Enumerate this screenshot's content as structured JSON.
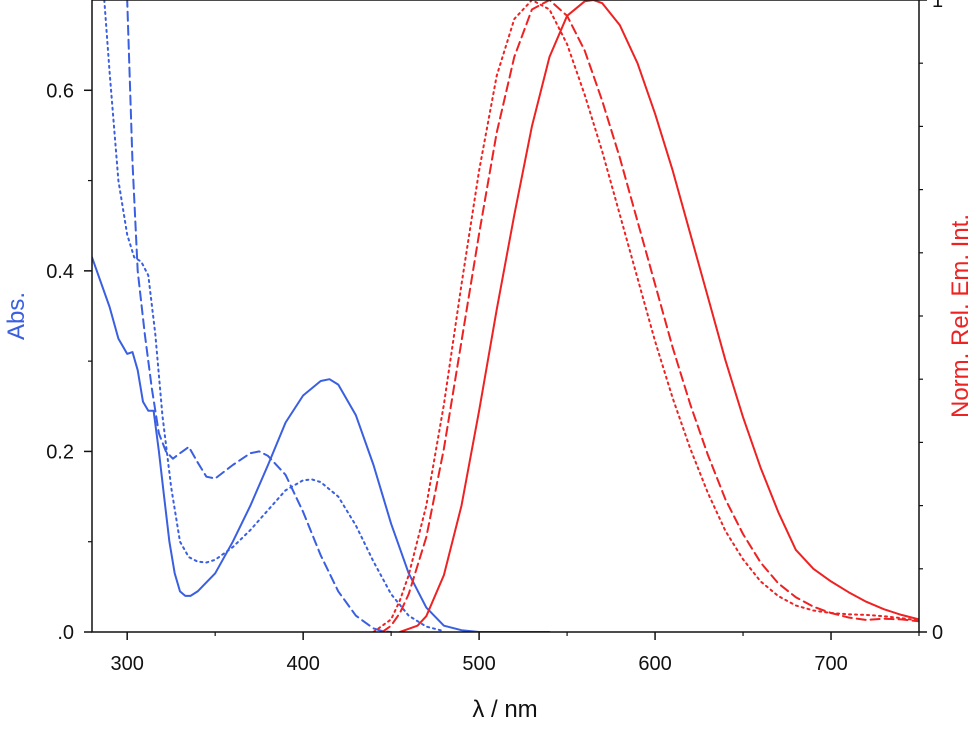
{
  "chart_data": {
    "type": "line",
    "xlabel": "λ / nm",
    "ylabel_left": "Abs.",
    "ylabel_right": "Norm. Rel. Em. Int.",
    "xlim": [
      280,
      750
    ],
    "ylim_left": [
      0,
      0.7
    ],
    "ylim_right": [
      0,
      1.0
    ],
    "x_ticks": [
      300,
      400,
      500,
      600,
      700
    ],
    "x_tick_labels": [
      "300",
      "400",
      "500",
      "600",
      "700"
    ],
    "y_left_ticks": [
      0,
      0.2,
      0.4,
      0.6
    ],
    "y_left_tick_labels": [
      ".0",
      "0.2",
      "0.4",
      "0.6"
    ],
    "y_right_ticks": [
      0,
      1
    ],
    "y_right_tick_labels": [
      "0",
      "1"
    ],
    "grid": false,
    "colors": {
      "absorption": "#3a5fe0",
      "emission": "#ee2222",
      "axis": "#111111"
    },
    "series": [
      {
        "kind": "absorption",
        "axis": "left",
        "dash": "solid",
        "x": [
          280,
          290,
          295,
          300,
          303,
          306,
          309,
          312,
          315,
          318,
          321,
          324,
          327,
          330,
          333,
          336,
          340,
          350,
          360,
          370,
          380,
          390,
          400,
          410,
          415,
          420,
          430,
          440,
          450,
          460,
          470,
          480,
          490,
          500,
          510,
          520,
          530,
          540
        ],
        "y": [
          0.415,
          0.36,
          0.325,
          0.308,
          0.31,
          0.29,
          0.255,
          0.245,
          0.245,
          0.2,
          0.15,
          0.1,
          0.065,
          0.045,
          0.04,
          0.04,
          0.045,
          0.065,
          0.1,
          0.14,
          0.185,
          0.232,
          0.262,
          0.278,
          0.28,
          0.274,
          0.24,
          0.185,
          0.12,
          0.065,
          0.027,
          0.007,
          0.002,
          0.0,
          0.0,
          0.0,
          0.0,
          0.0
        ]
      },
      {
        "kind": "absorption",
        "axis": "left",
        "dash": "dashed",
        "x": [
          298,
          300,
          303,
          306,
          310,
          314,
          318,
          322,
          326,
          330,
          335,
          340,
          345,
          350,
          360,
          370,
          375,
          380,
          390,
          400,
          410,
          420,
          430,
          440,
          445,
          450
        ],
        "y": [
          0.78,
          0.7,
          0.52,
          0.4,
          0.33,
          0.27,
          0.22,
          0.2,
          0.192,
          0.198,
          0.205,
          0.188,
          0.172,
          0.17,
          0.185,
          0.198,
          0.2,
          0.195,
          0.174,
          0.133,
          0.085,
          0.045,
          0.018,
          0.004,
          0.001,
          0.0
        ]
      },
      {
        "kind": "absorption",
        "axis": "left",
        "dash": "dotted",
        "x": [
          287,
          290,
          295,
          300,
          304,
          308,
          312,
          316,
          320,
          325,
          330,
          335,
          340,
          345,
          350,
          360,
          370,
          380,
          390,
          400,
          405,
          410,
          420,
          430,
          440,
          450,
          460,
          470,
          480
        ],
        "y": [
          0.7,
          0.62,
          0.5,
          0.44,
          0.415,
          0.41,
          0.395,
          0.33,
          0.24,
          0.16,
          0.1,
          0.083,
          0.078,
          0.077,
          0.08,
          0.094,
          0.113,
          0.135,
          0.157,
          0.168,
          0.169,
          0.166,
          0.15,
          0.118,
          0.078,
          0.042,
          0.018,
          0.006,
          0.001
        ]
      },
      {
        "kind": "emission",
        "axis": "right",
        "dash": "solid",
        "x": [
          455,
          460,
          465,
          470,
          480,
          490,
          500,
          510,
          520,
          530,
          540,
          550,
          560,
          565,
          570,
          580,
          590,
          600,
          610,
          620,
          630,
          640,
          650,
          660,
          670,
          680,
          690,
          700,
          710,
          720,
          730,
          740,
          750
        ],
        "y": [
          0.0,
          0.005,
          0.01,
          0.025,
          0.09,
          0.2,
          0.35,
          0.51,
          0.66,
          0.8,
          0.91,
          0.975,
          0.998,
          1.0,
          0.995,
          0.96,
          0.9,
          0.82,
          0.73,
          0.63,
          0.53,
          0.43,
          0.34,
          0.26,
          0.19,
          0.13,
          0.1,
          0.08,
          0.063,
          0.048,
          0.036,
          0.027,
          0.02
        ]
      },
      {
        "kind": "emission",
        "axis": "right",
        "dash": "dashed",
        "x": [
          445,
          450,
          455,
          460,
          470,
          480,
          490,
          500,
          510,
          520,
          530,
          540,
          550,
          560,
          570,
          580,
          590,
          600,
          610,
          620,
          630,
          640,
          650,
          660,
          670,
          680,
          690,
          700,
          710,
          720,
          730,
          740,
          750
        ],
        "y": [
          0.0,
          0.01,
          0.03,
          0.06,
          0.15,
          0.29,
          0.46,
          0.63,
          0.79,
          0.91,
          0.985,
          1.0,
          0.975,
          0.92,
          0.84,
          0.75,
          0.65,
          0.55,
          0.45,
          0.36,
          0.28,
          0.21,
          0.155,
          0.11,
          0.077,
          0.055,
          0.04,
          0.03,
          0.023,
          0.019,
          0.021,
          0.02,
          0.017
        ]
      },
      {
        "kind": "emission",
        "axis": "right",
        "dash": "dotted",
        "x": [
          440,
          450,
          455,
          460,
          470,
          480,
          490,
          500,
          510,
          520,
          530,
          540,
          550,
          560,
          570,
          580,
          590,
          600,
          610,
          620,
          630,
          640,
          650,
          660,
          670,
          680,
          690,
          700,
          710,
          720,
          730,
          740,
          750
        ],
        "y": [
          0.0,
          0.02,
          0.05,
          0.09,
          0.2,
          0.36,
          0.55,
          0.73,
          0.88,
          0.97,
          1.0,
          0.985,
          0.93,
          0.85,
          0.76,
          0.66,
          0.56,
          0.46,
          0.37,
          0.29,
          0.22,
          0.16,
          0.115,
          0.08,
          0.057,
          0.042,
          0.034,
          0.03,
          0.028,
          0.027,
          0.025,
          0.022,
          0.018
        ]
      }
    ]
  }
}
